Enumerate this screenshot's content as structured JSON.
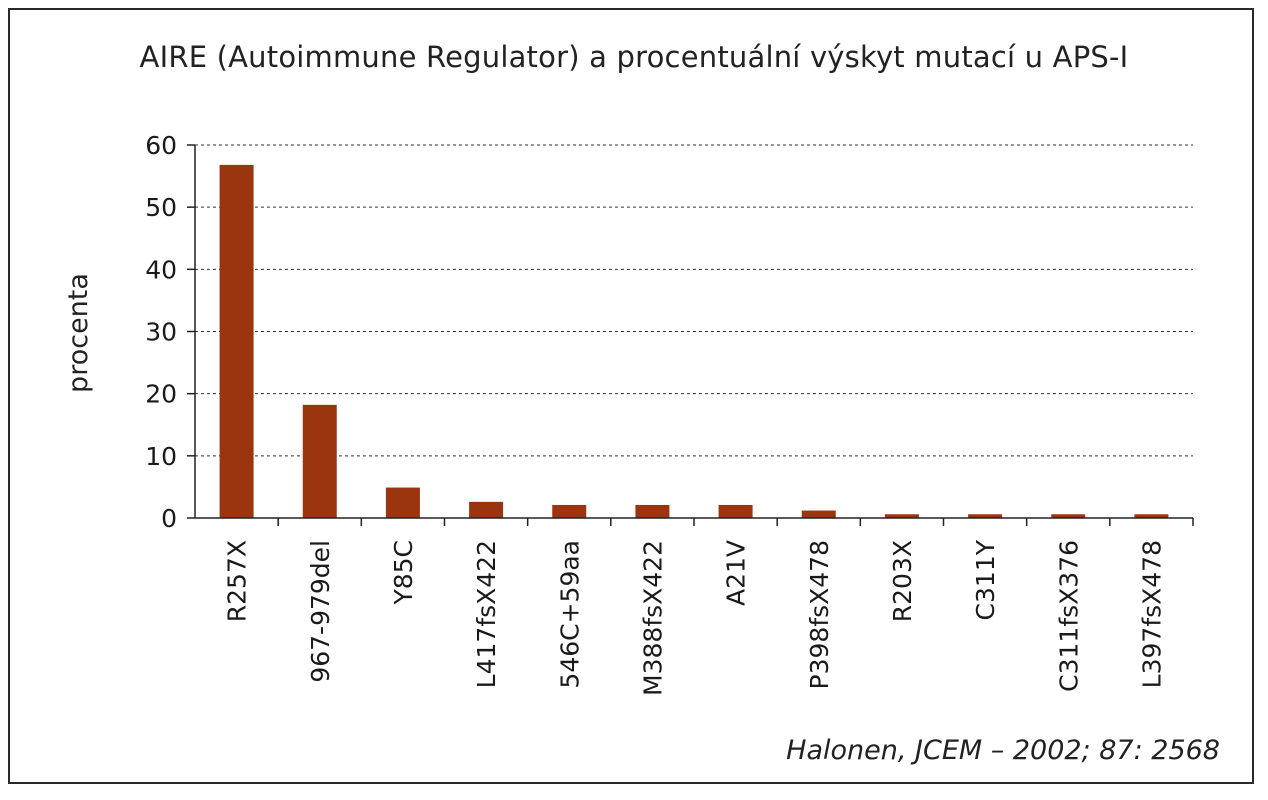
{
  "chart_data": {
    "type": "bar",
    "title": "AIRE (Autoimmune Regulator) a procentuální výskyt mutací u APS-I",
    "xlabel": "",
    "ylabel": "procenta",
    "ylim": [
      0,
      60
    ],
    "yticks": [
      0,
      10,
      20,
      30,
      40,
      50,
      60
    ],
    "grid": true,
    "bar_color": "#9b3510",
    "categories": [
      "R257X",
      "967-979del",
      "Y85C",
      "L417fsX422",
      "546C+59aa",
      "M388fsX422",
      "A21V",
      "P398fsX478",
      "R203X",
      "C311Y",
      "C311fsX376",
      "L397fsX478"
    ],
    "values": [
      56.8,
      18.2,
      4.9,
      2.6,
      2.1,
      2.1,
      2.1,
      1.2,
      0.6,
      0.6,
      0.6,
      0.6
    ]
  },
  "source": "Halonen, JCEM – 2002; 87: 2568"
}
